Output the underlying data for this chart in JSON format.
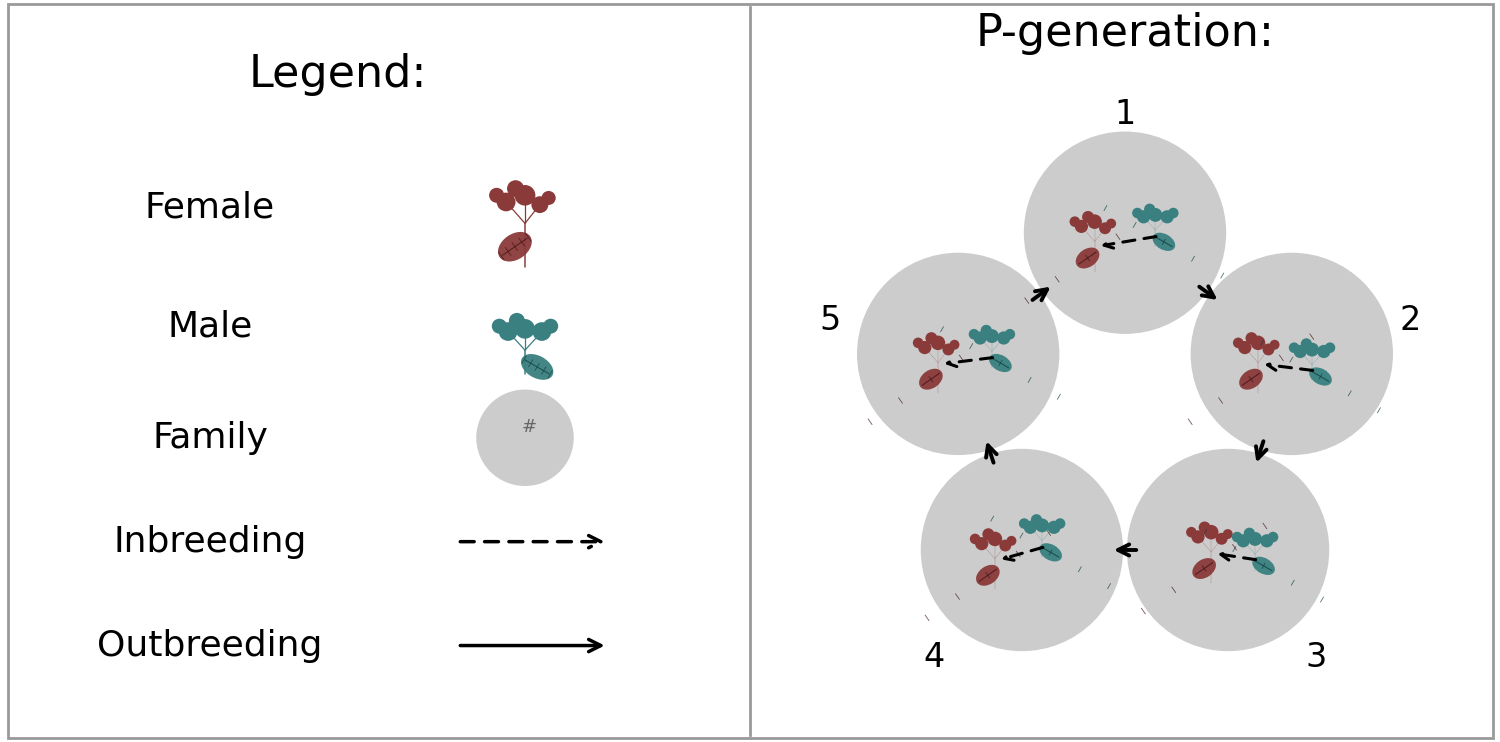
{
  "female_color": "#8B3A3A",
  "male_color": "#3A8080",
  "circle_color": "#CCCCCC",
  "bg_color": "#FFFFFF",
  "border_color": "#888888",
  "title_legend": "Legend:",
  "title_pgen": "P-generation:",
  "labels_legend": [
    "Female",
    "Male",
    "Family",
    "Inbreeding",
    "Outbreeding"
  ],
  "family_labels": [
    "1",
    "2",
    "3",
    "4",
    "5"
  ],
  "n_families": 5,
  "font_size_title": 32,
  "font_size_label": 26,
  "font_size_number": 24
}
